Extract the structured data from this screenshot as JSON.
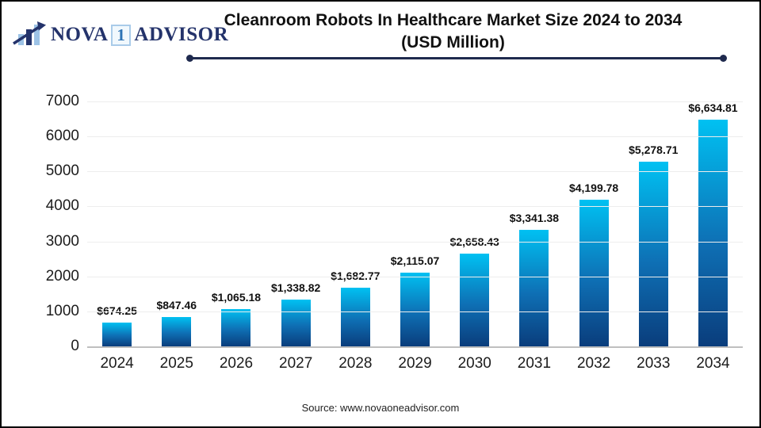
{
  "logo": {
    "part1": "NOVA",
    "part2": "1",
    "part3": "ADVISOR"
  },
  "title": {
    "line1": "Cleanroom Robots In Healthcare Market Size 2024 to 2034",
    "line2": "(USD Million)"
  },
  "source": "Source: www.novaoneadvisor.com",
  "colors": {
    "accent_navy": "#1f2a4e",
    "bar_top": "#00c1f2",
    "bar_bottom": "#0a3d7c",
    "axis_line": "#bfbfbf",
    "gridline": "#ededed",
    "logo_navy": "#24336b",
    "logo_blue": "#2e74b5"
  },
  "chart_data": {
    "type": "bar",
    "title": "Cleanroom Robots In Healthcare Market Size 2024 to 2034 (USD Million)",
    "categories": [
      "2024",
      "2025",
      "2026",
      "2027",
      "2028",
      "2029",
      "2030",
      "2031",
      "2032",
      "2033",
      "2034"
    ],
    "values": [
      674.25,
      847.46,
      1065.18,
      1338.82,
      1682.77,
      2115.07,
      2658.43,
      3341.38,
      4199.78,
      5278.71,
      6634.81
    ],
    "labels": [
      "$674.25",
      "$847.46",
      "$1,065.18",
      "$1,338.82",
      "$1,682.77",
      "$2,115.07",
      "$2,658.43",
      "$3,341.38",
      "$4,199.78",
      "$5,278.71",
      "$6,634.81"
    ],
    "xlabel": "",
    "ylabel": "",
    "ylim": [
      0,
      7000
    ],
    "yticks": [
      0,
      1000,
      2000,
      3000,
      4000,
      5000,
      6000,
      7000
    ],
    "grid": true,
    "legend": false
  }
}
